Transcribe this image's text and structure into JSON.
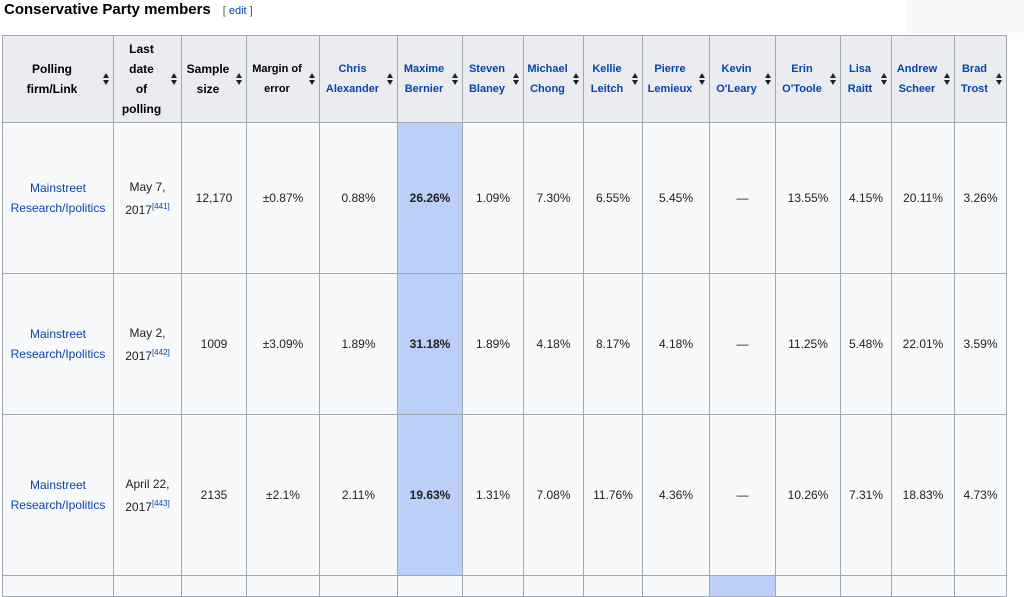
{
  "section": {
    "title": "Conservative Party members",
    "edit_open": "[",
    "edit_label": "edit",
    "edit_close": "]"
  },
  "columns": [
    {
      "lines": [
        "Polling",
        "firm/Link"
      ]
    },
    {
      "lines": [
        "Last",
        "date",
        "of",
        "polling"
      ]
    },
    {
      "lines": [
        "Sample",
        "size"
      ]
    },
    {
      "lines": [
        "Margin of",
        "error"
      ]
    },
    {
      "lines": [
        "Chris",
        "Alexander"
      ]
    },
    {
      "lines": [
        "Maxime",
        "Bernier"
      ]
    },
    {
      "lines": [
        "Steven",
        "Blaney"
      ]
    },
    {
      "lines": [
        "Michael",
        "Chong"
      ]
    },
    {
      "lines": [
        "Kellie",
        "Leitch"
      ]
    },
    {
      "lines": [
        "Pierre",
        "Lemieux"
      ]
    },
    {
      "lines": [
        "Kevin",
        "O'Leary"
      ]
    },
    {
      "lines": [
        "Erin",
        "O'Toole"
      ]
    },
    {
      "lines": [
        "Lisa",
        "Raitt"
      ]
    },
    {
      "lines": [
        "Andrew",
        "Scheer"
      ]
    },
    {
      "lines": [
        "Brad",
        "Trost"
      ]
    }
  ],
  "rows": [
    {
      "firm": [
        "Mainstreet",
        "Research/Ipolitics"
      ],
      "date": [
        "May 7,",
        "2017"
      ],
      "ref": "[441]",
      "sample": "12,170",
      "moe": "±0.87%",
      "values": [
        "0.88%",
        "26.26%",
        "1.09%",
        "7.30%",
        "6.55%",
        "5.45%",
        "—",
        "13.55%",
        "4.15%",
        "20.11%",
        "3.26%"
      ]
    },
    {
      "firm": [
        "Mainstreet",
        "Research/Ipolitics"
      ],
      "date": [
        "May 2,",
        "2017"
      ],
      "ref": "[442]",
      "sample": "1009",
      "moe": "±3.09%",
      "values": [
        "1.89%",
        "31.18%",
        "1.89%",
        "4.18%",
        "8.17%",
        "4.18%",
        "—",
        "11.25%",
        "5.48%",
        "22.01%",
        "3.59%"
      ]
    },
    {
      "firm": [
        "Mainstreet",
        "Research/Ipolitics"
      ],
      "date": [
        "April 22,",
        "2017"
      ],
      "ref": "[443]",
      "sample": "2135",
      "moe": "±2.1%",
      "values": [
        "2.11%",
        "19.63%",
        "1.31%",
        "7.08%",
        "11.76%",
        "4.36%",
        "—",
        "10.26%",
        "7.31%",
        "18.83%",
        "4.73%"
      ]
    }
  ],
  "highlight_color": "#bbcff8",
  "link_color": "#0645ad"
}
